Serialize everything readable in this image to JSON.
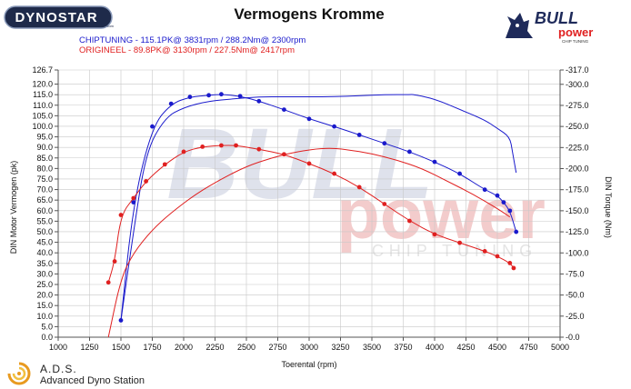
{
  "header": {
    "brand_logo_text": "DYNOSTAR",
    "brand_logo_suffix": "com",
    "title": "Vermogens Kromme",
    "bull_logo_text": "BULL",
    "bull_logo_sub": "power",
    "bull_logo_tag": "CHIP TUNING"
  },
  "legend": {
    "chiptuning": "CHIPTUNING  - 115.1PK@ 3831rpm / 288.2Nm@ 2300rpm",
    "origineel": "ORIGINEEL  - 89.8PK@ 3130rpm / 227.5Nm@ 2417rpm"
  },
  "watermark": {
    "line1": "BULL",
    "line2": "power",
    "line3": "CHIP TUNING"
  },
  "footer": {
    "ads_title": "A.D.S.",
    "ads_subtitle": "Advanced Dyno Station"
  },
  "colors": {
    "chiptuning": "#1a1acc",
    "origineel": "#e02020",
    "grid": "#c8c8c8"
  },
  "chart_data": {
    "type": "line",
    "xlabel": "Toerental (rpm)",
    "ylabel": "DIN Motor Vermogen (pk)",
    "y2label": "DIN Torque (Nm)",
    "xlim": [
      1000,
      5000
    ],
    "ylim": [
      0,
      126.7
    ],
    "y2lim": [
      0,
      317
    ],
    "x_ticks": [
      "1000",
      "1250",
      "1500",
      "1750",
      "2000",
      "2250",
      "2500",
      "2750",
      "3000",
      "3250",
      "3500",
      "3750",
      "4000",
      "4250",
      "4500",
      "4750",
      "5000"
    ],
    "y_ticks": [
      "0.0",
      "5.0",
      "10.0",
      "15.0",
      "20.0",
      "25.0",
      "30.0",
      "35.0",
      "40.0",
      "45.0",
      "50.0",
      "55.0",
      "60.0",
      "65.0",
      "70.0",
      "75.0",
      "80.0",
      "85.0",
      "90.0",
      "95.0",
      "100.0",
      "105.0",
      "110.0",
      "115.0",
      "120.0",
      "126.7"
    ],
    "y2_ticks": [
      "0.0",
      "25.0",
      "50.0",
      "75.0",
      "100.0",
      "125.0",
      "150.0",
      "175.0",
      "200.0",
      "225.0",
      "250.0",
      "275.0",
      "300.0",
      "317.0"
    ],
    "grid": true,
    "series": [
      {
        "name": "CHIPTUNING",
        "kind": "power",
        "axis": "left",
        "color": "#1a1acc",
        "x": [
          1500,
          1600,
          1700,
          1850,
          2000,
          2200,
          2400,
          2600,
          2800,
          3000,
          3200,
          3400,
          3600,
          3800,
          3831,
          4000,
          4200,
          4400,
          4500,
          4600,
          4620,
          4650
        ],
        "y": [
          8,
          50,
          88,
          104,
          109,
          112,
          113,
          114,
          114,
          114,
          114,
          114.5,
          115,
          115,
          115.1,
          113,
          108,
          103,
          99,
          95,
          88,
          78
        ]
      },
      {
        "name": "CHIPTUNING",
        "kind": "torque",
        "axis": "right",
        "color": "#1a1acc",
        "x": [
          1500,
          1600,
          1750,
          1900,
          2050,
          2200,
          2300,
          2450,
          2600,
          2800,
          3000,
          3200,
          3400,
          3600,
          3800,
          4000,
          4200,
          4400,
          4500,
          4550,
          4600,
          4650
        ],
        "y": [
          20,
          160,
          250,
          277,
          285,
          287,
          288.2,
          286,
          280,
          270,
          259,
          250,
          240,
          230,
          220,
          208,
          194,
          175,
          168,
          160,
          150,
          125
        ]
      },
      {
        "name": "ORIGINEEL",
        "kind": "power",
        "axis": "left",
        "color": "#e02020",
        "x": [
          1400,
          1500,
          1600,
          1750,
          1900,
          2100,
          2300,
          2500,
          2700,
          2900,
          3130,
          3300,
          3500,
          3700,
          3900,
          4100,
          4300,
          4500,
          4600
        ],
        "y": [
          0,
          28,
          40,
          51,
          59,
          68,
          75,
          81,
          85,
          88,
          89.8,
          89,
          87,
          84,
          80,
          74,
          68,
          61,
          57
        ]
      },
      {
        "name": "ORIGINEEL",
        "kind": "torque",
        "axis": "right",
        "color": "#e02020",
        "x": [
          1400,
          1450,
          1500,
          1600,
          1700,
          1850,
          2000,
          2150,
          2300,
          2417,
          2600,
          2800,
          3000,
          3200,
          3400,
          3600,
          3800,
          4000,
          4200,
          4400,
          4500,
          4600,
          4630
        ],
        "y": [
          65,
          90,
          145,
          165,
          185,
          205,
          220,
          226,
          227.5,
          227.5,
          223,
          217,
          206,
          194,
          178,
          158,
          138,
          122,
          112,
          102,
          96,
          88,
          82
        ]
      }
    ]
  }
}
